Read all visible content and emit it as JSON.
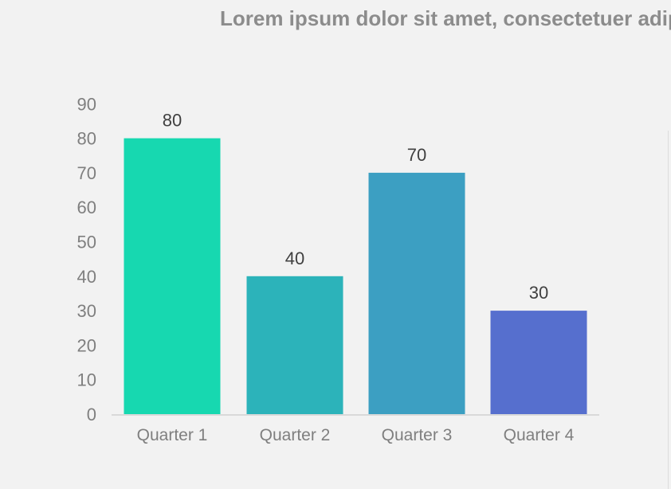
{
  "title": "Lorem ipsum dolor sit amet, consectetuer adipi",
  "chart_data": {
    "type": "bar",
    "title": "Lorem ipsum dolor sit amet, consectetuer adipi",
    "categories": [
      "Quarter 1",
      "Quarter 2",
      "Quarter 3",
      "Quarter 4"
    ],
    "values": [
      80,
      40,
      70,
      30
    ],
    "data_labels": [
      "80",
      "40",
      "70",
      "30"
    ],
    "bar_colors": [
      "#17d8b0",
      "#2cb3ba",
      "#3c9fc2",
      "#566fce"
    ],
    "xlabel": "",
    "ylabel": "",
    "ylim": [
      0,
      90
    ],
    "yticks": [
      0,
      10,
      20,
      30,
      40,
      50,
      60,
      70,
      80,
      90
    ],
    "grid": false,
    "legend": "none",
    "colors": {
      "background": "#f2f2f2",
      "axis_text": "#7f7f7f",
      "data_label_text": "#404040",
      "baseline": "#d9d9d9"
    }
  }
}
